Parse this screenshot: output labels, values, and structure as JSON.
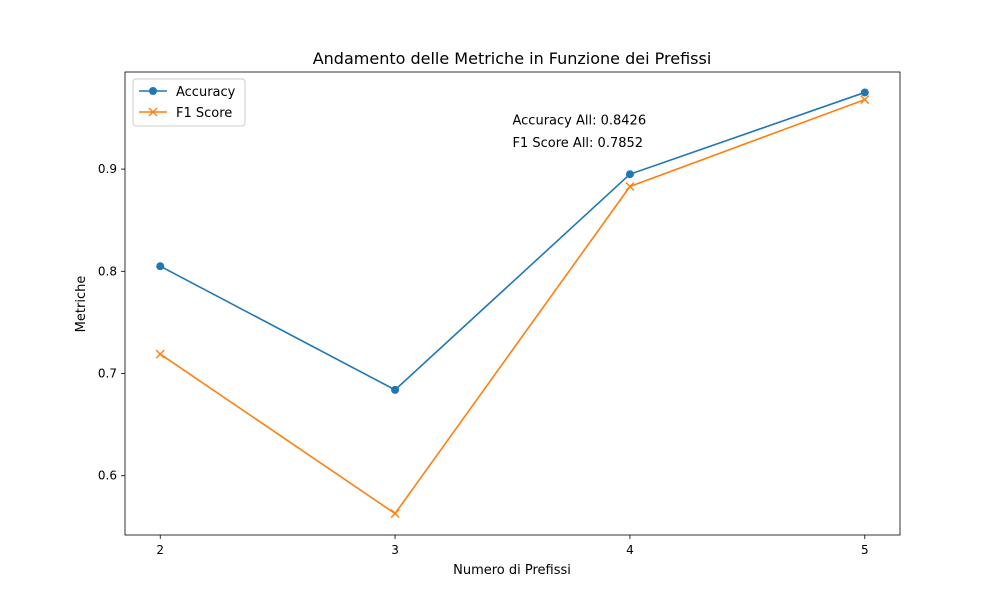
{
  "chart_data": {
    "type": "line",
    "title": "Andamento delle Metriche in Funzione dei Prefissi",
    "xlabel": "Numero di Prefissi",
    "ylabel": "Metriche",
    "x": [
      2,
      3,
      4,
      5
    ],
    "xticks": [
      "2",
      "3",
      "4",
      "5"
    ],
    "xlim": [
      1.85,
      5.15
    ],
    "ylim": [
      0.542,
      0.995
    ],
    "yticks": [
      0.6,
      0.7,
      0.8,
      0.9
    ],
    "ytick_labels": [
      "0.6",
      "0.7",
      "0.8",
      "0.9"
    ],
    "grid": false,
    "legend_position": "top-left",
    "series": [
      {
        "name": "Accuracy",
        "values": [
          0.805,
          0.684,
          0.895,
          0.975
        ],
        "color": "#1f77b4",
        "marker": "circle"
      },
      {
        "name": "F1 Score",
        "values": [
          0.719,
          0.563,
          0.883,
          0.968
        ],
        "color": "#ff7f0e",
        "marker": "x"
      }
    ],
    "annotations": [
      {
        "text": "Accuracy All: 0.8426",
        "x": 3.5,
        "y": 0.9435
      },
      {
        "text": "F1 Score All: 0.7852",
        "x": 3.5,
        "y": 0.9215
      }
    ]
  }
}
